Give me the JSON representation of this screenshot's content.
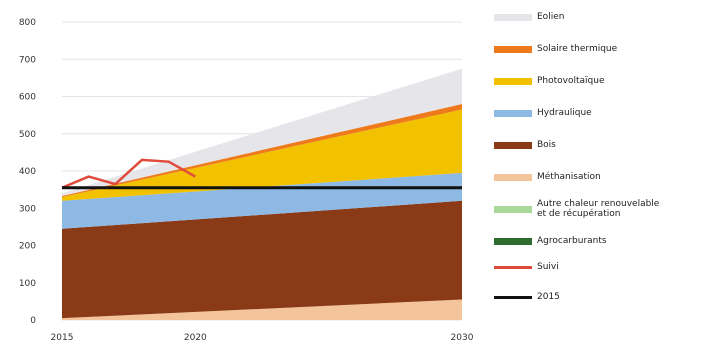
{
  "chart_data": {
    "type": "area",
    "title": "",
    "xlabel": "",
    "ylabel": "",
    "x_ticks": [
      "2015",
      "2020",
      "2030"
    ],
    "y_ticks": [
      "0",
      "100",
      "200",
      "300",
      "400",
      "500",
      "600",
      "700",
      "800"
    ],
    "xlim": [
      2015,
      2030
    ],
    "ylim": [
      0,
      800
    ],
    "grid": "horizontal",
    "legend_position": "right",
    "stack_x": [
      2015,
      2030
    ],
    "stacked_series": [
      {
        "name": "Méthanisation",
        "color": "#f4c49a",
        "values": [
          5,
          55
        ]
      },
      {
        "name": "Bois",
        "color": "#8b3a17",
        "values": [
          240,
          265
        ]
      },
      {
        "name": "Hydraulique",
        "color": "#8db9e4",
        "values": [
          75,
          75
        ]
      },
      {
        "name": "Photovoltaïque",
        "color": "#f2c200",
        "values": [
          10,
          170
        ]
      },
      {
        "name": "Solaire thermique",
        "color": "#ee7a1c",
        "values": [
          3,
          15
        ]
      },
      {
        "name": "Eolien",
        "color": "#e6e6ea",
        "values": [
          7,
          95
        ]
      }
    ],
    "line_series": [
      {
        "name": "Suivi",
        "color": "#e04a3a",
        "x": [
          2015,
          2016,
          2017,
          2018,
          2019,
          2020
        ],
        "values": [
          355,
          385,
          365,
          430,
          425,
          385
        ]
      },
      {
        "name": "2015",
        "color": "#111111",
        "x": [
          2015,
          2030
        ],
        "values": [
          355,
          355
        ]
      }
    ]
  },
  "legend": [
    {
      "label": "Eolien",
      "color": "#e6e6ea",
      "kind": "area"
    },
    {
      "label": "Solaire thermique",
      "color": "#ee7a1c",
      "kind": "area"
    },
    {
      "label": "Photovoltaïque",
      "color": "#f2c200",
      "kind": "area"
    },
    {
      "label": "Hydraulique",
      "color": "#8db9e4",
      "kind": "area"
    },
    {
      "label": "Bois",
      "color": "#8b3a17",
      "kind": "area"
    },
    {
      "label": "Méthanisation",
      "color": "#f4c49a",
      "kind": "area"
    },
    {
      "label": "Autre chaleur renouvelable\net de récupération",
      "color": "#a8d89a",
      "kind": "area"
    },
    {
      "label": "Agrocarburants",
      "color": "#2e6b2e",
      "kind": "area"
    },
    {
      "label": "Suivi",
      "color": "#e04a3a",
      "kind": "line"
    },
    {
      "label": "2015",
      "color": "#111111",
      "kind": "line"
    }
  ]
}
